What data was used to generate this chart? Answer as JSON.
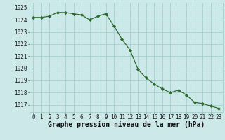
{
  "x": [
    0,
    1,
    2,
    3,
    4,
    5,
    6,
    7,
    8,
    9,
    10,
    11,
    12,
    13,
    14,
    15,
    16,
    17,
    18,
    19,
    20,
    21,
    22,
    23
  ],
  "y": [
    1024.2,
    1024.2,
    1024.3,
    1024.6,
    1024.6,
    1024.5,
    1024.4,
    1024.0,
    1024.3,
    1024.5,
    1023.5,
    1022.4,
    1021.5,
    1019.9,
    1019.2,
    1018.7,
    1018.3,
    1018.0,
    1018.2,
    1017.8,
    1017.2,
    1017.1,
    1016.9,
    1016.7
  ],
  "line_color": "#2d6a2d",
  "marker_color": "#2d6a2d",
  "bg_color": "#cce8e8",
  "grid_color": "#99cccc",
  "title": "Graphe pression niveau de la mer (hPa)",
  "ylim_min": 1016.4,
  "ylim_max": 1025.4,
  "yticks": [
    1017,
    1018,
    1019,
    1020,
    1021,
    1022,
    1023,
    1024,
    1025
  ],
  "xticks": [
    0,
    1,
    2,
    3,
    4,
    5,
    6,
    7,
    8,
    9,
    10,
    11,
    12,
    13,
    14,
    15,
    16,
    17,
    18,
    19,
    20,
    21,
    22,
    23
  ],
  "title_fontsize": 7,
  "tick_fontsize": 5.5
}
